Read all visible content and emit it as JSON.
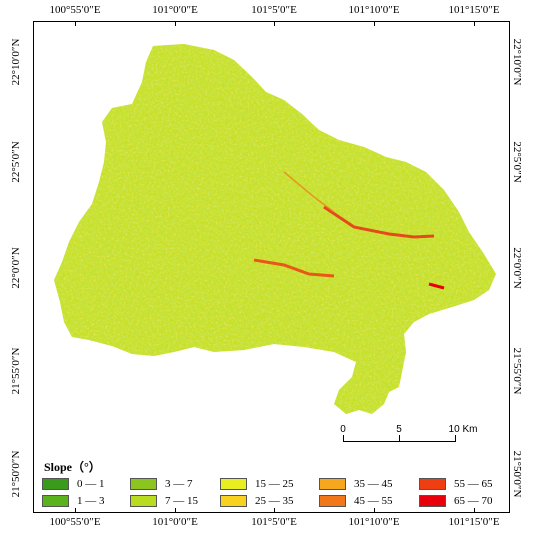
{
  "map": {
    "top_labels": [
      "100°55′0″E",
      "101°0′0″E",
      "101°5′0″E",
      "101°10′0″E",
      "101°15′0″E"
    ],
    "bottom_labels": [
      "100°55′0″E",
      "101°0′0″E",
      "101°5′0″E",
      "101°10′0″E",
      "101°15′0″E"
    ],
    "left_labels": [
      "22°10′0″N",
      "22°5′0″N",
      "22°0′0″N",
      "21°55′0″N",
      "21°50′0″N"
    ],
    "right_labels": [
      "22°10′0″N",
      "22°5′0″N",
      "22°0′0″N",
      "21°55′0″N",
      "21°50′0″N"
    ]
  },
  "scale_bar": {
    "labels": [
      "0",
      "5",
      "10 Km"
    ]
  },
  "legend": {
    "title": "Slope（°）",
    "items": [
      {
        "label": "0 — 1",
        "color": "#3a9a1c"
      },
      {
        "label": "1 — 3",
        "color": "#59b31d"
      },
      {
        "label": "3 — 7",
        "color": "#8cc520"
      },
      {
        "label": "7 — 15",
        "color": "#b9dc21"
      },
      {
        "label": "15 — 25",
        "color": "#e8ee22"
      },
      {
        "label": "25 — 35",
        "color": "#f8d21f"
      },
      {
        "label": "35 — 45",
        "color": "#f5a71d"
      },
      {
        "label": "45 — 55",
        "color": "#f27718"
      },
      {
        "label": "55 — 65",
        "color": "#ef3e12"
      },
      {
        "label": "65 — 70",
        "color": "#e8000b"
      }
    ]
  }
}
